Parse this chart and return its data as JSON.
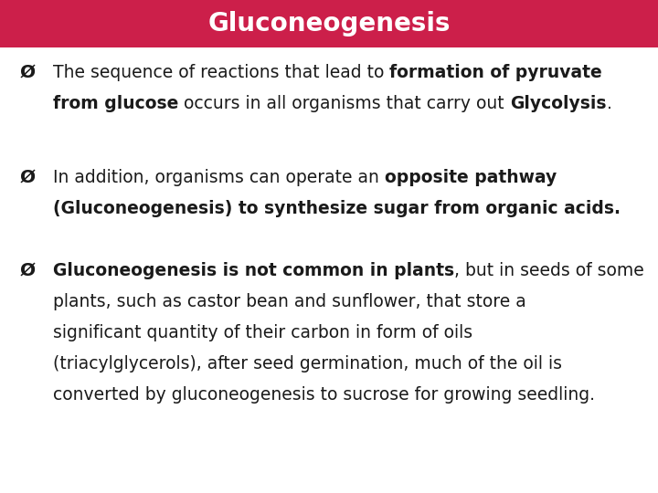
{
  "title": "Gluconeogenesis",
  "title_bg_color": "#cc1f4a",
  "title_text_color": "#ffffff",
  "body_bg_color": "#ffffff",
  "body_text_color": "#1a1a1a",
  "fig_width": 7.2,
  "fig_height": 5.4,
  "dpi": 100,
  "title_fontsize": 20,
  "body_fontsize": 13.5,
  "bullet_char": "Ø",
  "paragraphs": [
    {
      "lines": [
        [
          {
            "text": "The sequence of reactions that lead to ",
            "bold": false
          },
          {
            "text": "formation of pyruvate",
            "bold": true
          }
        ],
        [
          {
            "text": "from glucose",
            "bold": true
          },
          {
            "text": " occurs in all organisms that carry out ",
            "bold": false
          },
          {
            "text": "Glycolysis",
            "bold": true
          },
          {
            "text": ".",
            "bold": false
          }
        ]
      ]
    },
    {
      "lines": [
        [
          {
            "text": "In addition, organisms can operate an ",
            "bold": false
          },
          {
            "text": "opposite pathway",
            "bold": true
          }
        ],
        [
          {
            "text": "(Gluconeogenesis) to synthesize sugar from organic acids.",
            "bold": true
          }
        ]
      ]
    },
    {
      "lines": [
        [
          {
            "text": "Gluconeogenesis is not common in plants",
            "bold": true
          },
          {
            "text": ", but in seeds of some",
            "bold": false
          }
        ],
        [
          {
            "text": "plants, such as castor bean and sunflower, that store a",
            "bold": false
          }
        ],
        [
          {
            "text": "significant quantity of their carbon in form of oils",
            "bold": false
          }
        ],
        [
          {
            "text": "(triacylglycerols), after seed germination, much of the oil is",
            "bold": false
          }
        ],
        [
          {
            "text": "converted by gluconeogenesis to sucrose for growing seedling.",
            "bold": false
          }
        ]
      ]
    }
  ]
}
